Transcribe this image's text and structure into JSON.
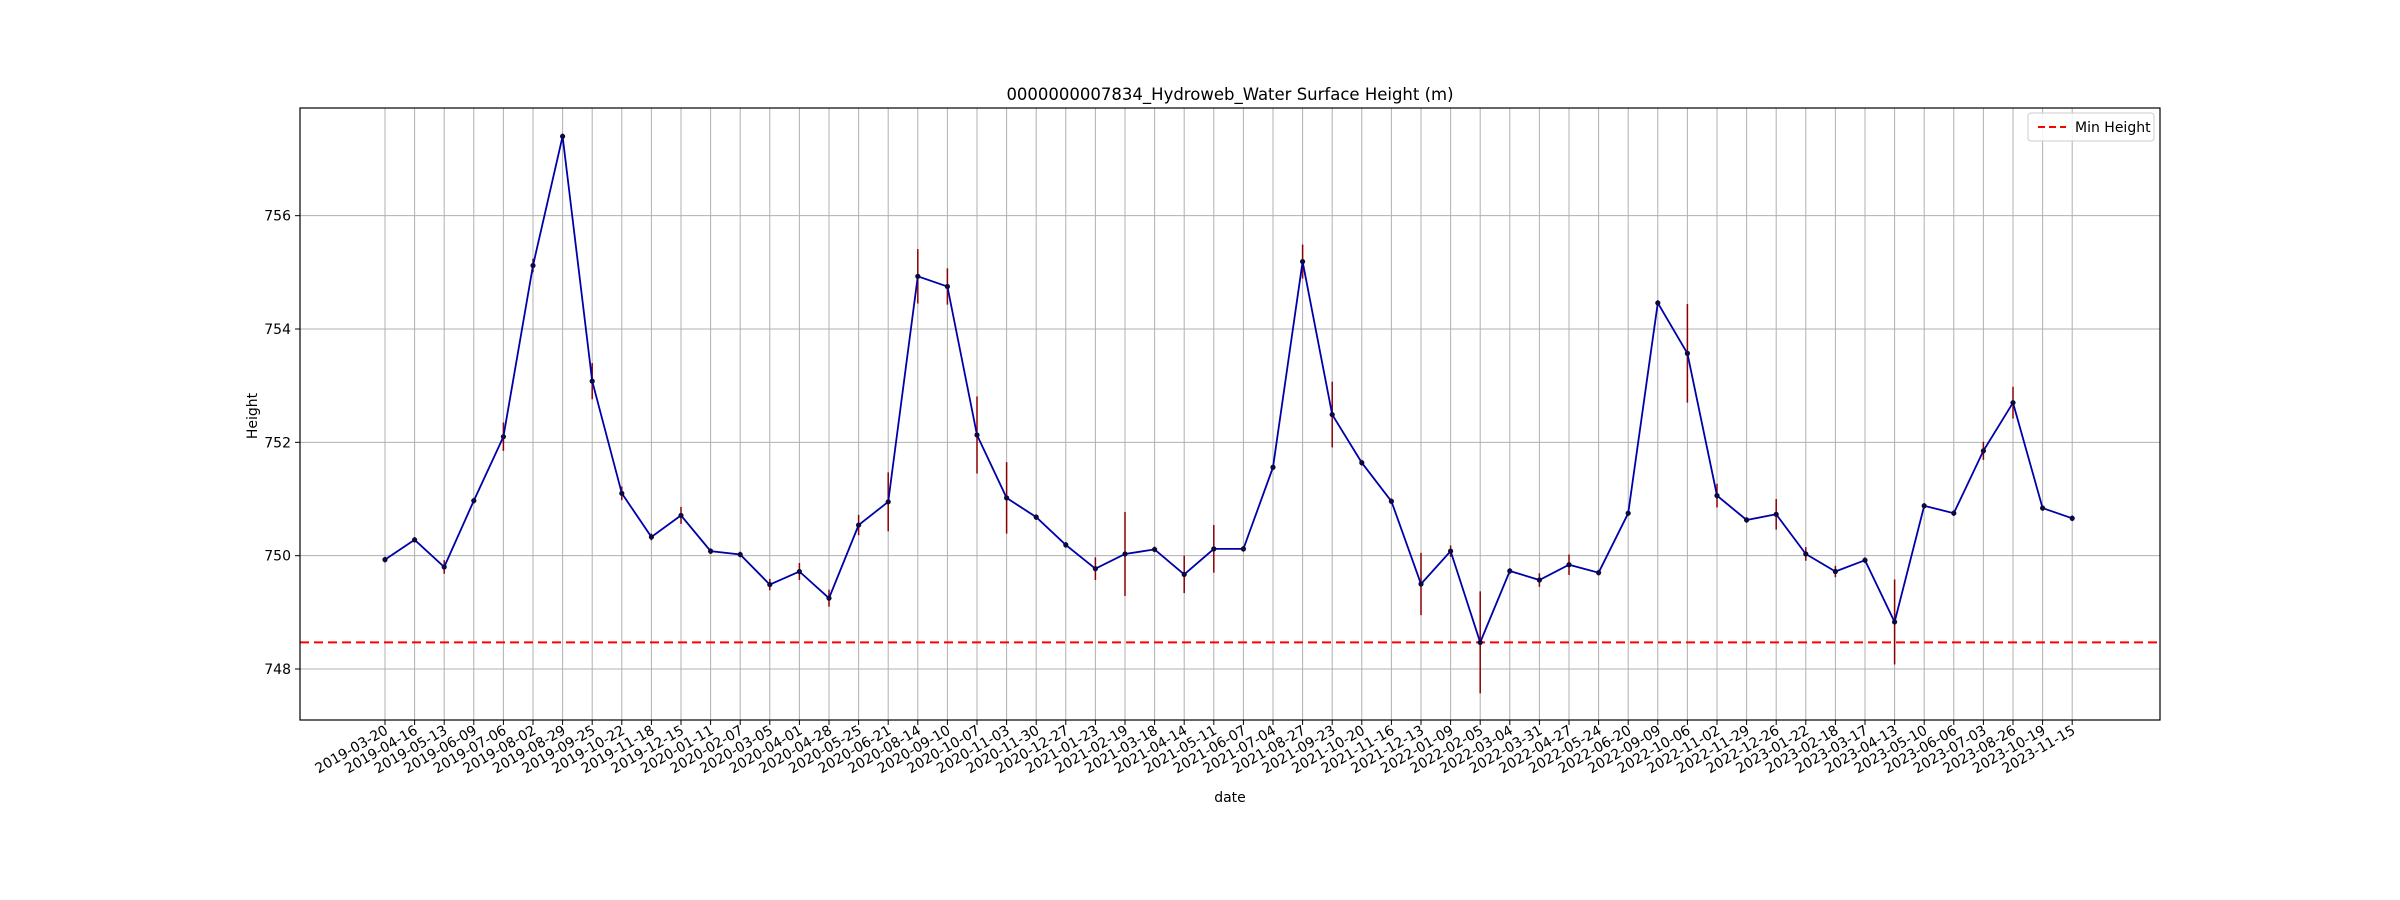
{
  "chart_data": {
    "type": "line",
    "title": "0000000007834_Hydroweb_Water Surface Height (m)",
    "xlabel": "date",
    "ylabel": "Height",
    "ylim": [
      747.1,
      757.9
    ],
    "yticks": [
      748,
      750,
      752,
      754,
      756
    ],
    "grid": true,
    "legend_position": "top-right",
    "colors": {
      "line": "#0000aa",
      "marker": "#0a0a3c",
      "error_bar": "#8b0000",
      "min_line": "#ff0000",
      "grid": "#b0b0b0"
    },
    "series": [
      {
        "values": [
          749.93,
          750.28,
          749.8,
          750.97,
          752.1,
          755.12,
          757.4,
          753.08,
          751.1,
          750.33,
          750.71,
          750.08,
          750.02,
          749.49,
          749.72,
          749.25,
          750.54,
          750.95,
          754.93,
          754.75,
          752.13,
          751.02,
          750.68,
          750.19,
          749.77,
          750.03,
          750.11,
          749.67,
          750.12,
          750.12,
          751.56,
          755.19,
          752.49,
          751.64,
          750.96,
          749.5,
          750.08,
          748.47,
          749.73,
          749.57,
          749.84,
          749.7,
          750.75,
          754.46,
          753.57,
          751.06,
          750.63,
          750.73,
          750.03,
          749.72,
          749.92,
          748.83,
          750.88,
          750.75,
          751.85,
          752.7,
          750.84,
          750.66
        ],
        "errors": [
          0.05,
          0.05,
          0.12,
          0.05,
          0.25,
          0.12,
          0.05,
          0.32,
          0.12,
          0.06,
          0.15,
          0.05,
          0.05,
          0.1,
          0.15,
          0.15,
          0.18,
          0.52,
          0.48,
          0.32,
          0.68,
          0.63,
          0.05,
          0.05,
          0.2,
          0.74,
          0.05,
          0.33,
          0.42,
          0.05,
          0.05,
          0.3,
          0.58,
          0.05,
          0.05,
          0.55,
          0.1,
          0.9,
          0.05,
          0.12,
          0.18,
          0.05,
          0.05,
          0.05,
          0.87,
          0.21,
          0.05,
          0.27,
          0.12,
          0.1,
          0.05,
          0.75,
          0.05,
          0.05,
          0.16,
          0.28,
          0.05,
          0.05
        ]
      },
      {
        "name": "Min Height",
        "type": "hline",
        "value": 748.47,
        "style": "dashed"
      }
    ]
  },
  "x_ticks": [
    "2019-03-20",
    "2019-04-16",
    "2019-05-13",
    "2019-06-09",
    "2019-07-06",
    "2019-08-02",
    "2019-08-29",
    "2019-09-25",
    "2019-10-22",
    "2019-11-18",
    "2019-12-15",
    "2020-01-11",
    "2020-02-07",
    "2020-03-05",
    "2020-04-01",
    "2020-04-28",
    "2020-05-25",
    "2020-06-21",
    "2020-08-14",
    "2020-09-10",
    "2020-10-07",
    "2020-11-03",
    "2020-11-30",
    "2020-12-27",
    "2021-01-23",
    "2021-02-19",
    "2021-03-18",
    "2021-04-14",
    "2021-05-11",
    "2021-06-07",
    "2021-07-04",
    "2021-08-27",
    "2021-09-23",
    "2021-10-20",
    "2021-11-16",
    "2021-12-13",
    "2022-01-09",
    "2022-02-05",
    "2022-03-04",
    "2022-03-31",
    "2022-04-27",
    "2022-05-24",
    "2022-06-20",
    "2022-09-09",
    "2022-10-06",
    "2022-11-02",
    "2022-11-29",
    "2022-12-26",
    "2023-01-22",
    "2023-02-18",
    "2023-03-17",
    "2023-04-13",
    "2023-05-10",
    "2023-06-06",
    "2023-07-03",
    "2023-08-26",
    "2023-10-19",
    "2023-11-15"
  ]
}
